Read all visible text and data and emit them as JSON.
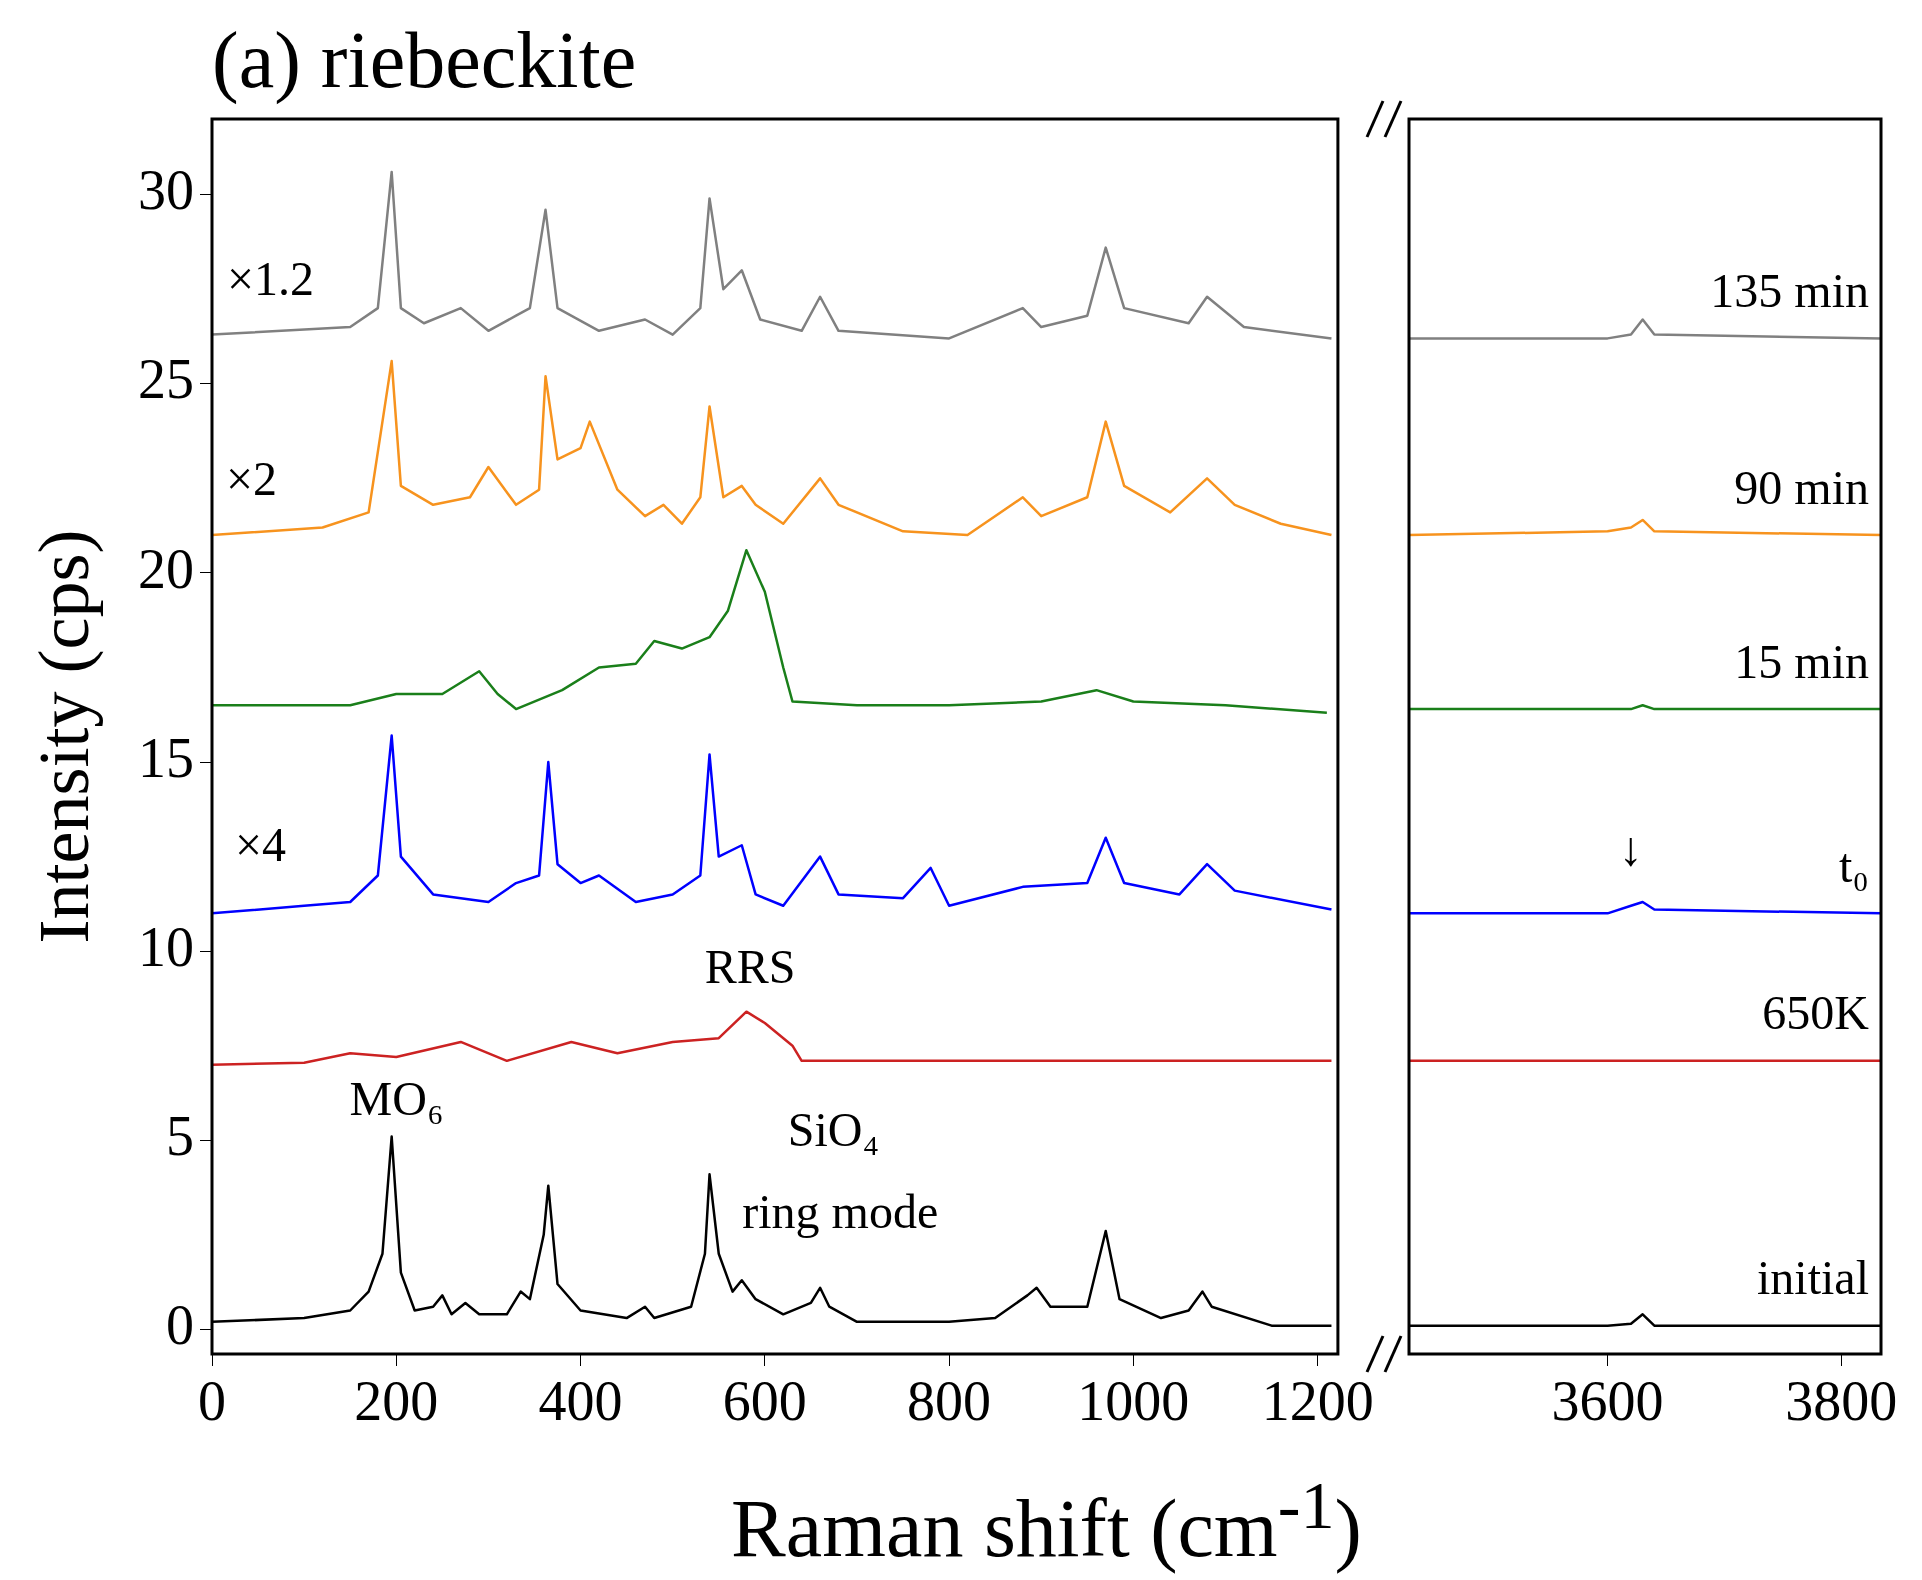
{
  "chart_data": [
    {
      "type": "line",
      "title": "(a) riebeckite",
      "xlabel": "Raman shift (cm$^{-1}$)",
      "ylabel": "Intensity (cps)",
      "xlim": [
        0,
        1222
      ],
      "xticks": [
        0,
        200,
        400,
        600,
        800,
        1000,
        1200
      ],
      "ylim": [
        -0.65,
        32
      ],
      "yticks": [
        0,
        5,
        10,
        15,
        20,
        25,
        30
      ],
      "grid": false,
      "legend": false,
      "annotations": [
        "×1.2",
        "×2",
        "×4",
        "MO₆",
        "RRS",
        "SiO₄",
        "ring mode"
      ],
      "series": [
        {
          "color": "#808080",
          "x": [
            0,
            150,
            180,
            195,
            205,
            230,
            270,
            300,
            330,
            345,
            362,
            375,
            420,
            470,
            500,
            530,
            540,
            555,
            575,
            595,
            640,
            660,
            680,
            800,
            880,
            900,
            950,
            970,
            990,
            1060,
            1080,
            1120,
            1215
          ],
          "values": [
            26.3,
            26.5,
            27.0,
            30.6,
            27.0,
            26.6,
            27.0,
            26.4,
            26.8,
            27.0,
            29.6,
            27.0,
            26.4,
            26.7,
            26.3,
            27.0,
            29.9,
            27.5,
            28.0,
            26.7,
            26.4,
            27.3,
            26.4,
            26.2,
            27.0,
            26.5,
            26.8,
            28.6,
            27.0,
            26.6,
            27.3,
            26.5,
            26.2
          ]
        },
        {
          "color": "#f7931e",
          "x": [
            0,
            120,
            170,
            195,
            205,
            240,
            280,
            300,
            330,
            355,
            362,
            375,
            400,
            410,
            440,
            470,
            490,
            510,
            530,
            540,
            555,
            575,
            590,
            620,
            660,
            680,
            750,
            820,
            880,
            900,
            950,
            970,
            990,
            1040,
            1080,
            1110,
            1160,
            1215
          ],
          "values": [
            21.0,
            21.2,
            21.6,
            25.6,
            22.3,
            21.8,
            22.0,
            22.8,
            21.8,
            22.2,
            25.2,
            23.0,
            23.3,
            24.0,
            22.2,
            21.5,
            21.8,
            21.3,
            22.0,
            24.4,
            22.0,
            22.3,
            21.8,
            21.3,
            22.5,
            21.8,
            21.1,
            21.0,
            22.0,
            21.5,
            22.0,
            24.0,
            22.3,
            21.6,
            22.5,
            21.8,
            21.3,
            21.0
          ]
        },
        {
          "color": "#1a7f1a",
          "x": [
            0,
            150,
            200,
            250,
            290,
            310,
            330,
            380,
            420,
            460,
            480,
            510,
            540,
            560,
            580,
            600,
            620,
            630,
            700,
            800,
            900,
            960,
            1000,
            1100,
            1210
          ],
          "values": [
            16.5,
            16.5,
            16.8,
            16.8,
            17.4,
            16.8,
            16.4,
            16.9,
            17.5,
            17.6,
            18.2,
            18.0,
            18.3,
            19.0,
            20.6,
            19.5,
            17.5,
            16.6,
            16.5,
            16.5,
            16.6,
            16.9,
            16.6,
            16.5,
            16.3
          ]
        },
        {
          "color": "#0000ff",
          "x": [
            0,
            100,
            150,
            180,
            195,
            205,
            240,
            300,
            330,
            355,
            365,
            375,
            400,
            420,
            460,
            500,
            530,
            540,
            550,
            575,
            590,
            620,
            660,
            680,
            750,
            780,
            800,
            880,
            950,
            970,
            990,
            1050,
            1080,
            1110,
            1215
          ],
          "values": [
            11.0,
            11.2,
            11.3,
            12.0,
            15.7,
            12.5,
            11.5,
            11.3,
            11.8,
            12.0,
            15.0,
            12.3,
            11.8,
            12.0,
            11.3,
            11.5,
            12.0,
            15.2,
            12.5,
            12.8,
            11.5,
            11.2,
            12.5,
            11.5,
            11.4,
            12.2,
            11.2,
            11.7,
            11.8,
            13.0,
            11.8,
            11.5,
            12.3,
            11.6,
            11.1
          ]
        },
        {
          "color": "#cc2222",
          "x": [
            0,
            100,
            150,
            200,
            270,
            320,
            390,
            440,
            500,
            550,
            580,
            600,
            630,
            640,
            1215
          ],
          "values": [
            7.0,
            7.05,
            7.3,
            7.2,
            7.6,
            7.1,
            7.6,
            7.3,
            7.6,
            7.7,
            8.4,
            8.1,
            7.5,
            7.1,
            7.1
          ]
        },
        {
          "color": "#000000",
          "x": [
            0,
            100,
            150,
            170,
            185,
            195,
            205,
            220,
            240,
            250,
            260,
            275,
            290,
            320,
            335,
            345,
            360,
            365,
            375,
            400,
            450,
            470,
            480,
            520,
            535,
            540,
            550,
            565,
            575,
            590,
            620,
            650,
            660,
            670,
            700,
            800,
            850,
            885,
            895,
            910,
            950,
            970,
            985,
            1030,
            1060,
            1075,
            1085,
            1150,
            1215
          ],
          "values": [
            0.2,
            0.3,
            0.5,
            1.0,
            2.0,
            5.1,
            1.5,
            0.5,
            0.6,
            0.9,
            0.4,
            0.7,
            0.4,
            0.4,
            1.0,
            0.8,
            2.5,
            3.8,
            1.2,
            0.5,
            0.3,
            0.6,
            0.3,
            0.6,
            2.0,
            4.1,
            2.0,
            1.0,
            1.3,
            0.8,
            0.4,
            0.7,
            1.1,
            0.6,
            0.2,
            0.2,
            0.3,
            0.9,
            1.1,
            0.6,
            0.6,
            2.6,
            0.8,
            0.3,
            0.5,
            1.0,
            0.6,
            0.1,
            0.1
          ]
        }
      ]
    },
    {
      "type": "line",
      "xlim": [
        3430,
        3834
      ],
      "xticks": [
        3600,
        3800
      ],
      "ylim": [
        -0.65,
        32
      ],
      "grid": false,
      "legend": false,
      "tick_labels": "x",
      "annotations": [
        "↓"
      ],
      "series": [
        {
          "name": "135 min",
          "color": "#808080",
          "x": [
            3430,
            3600,
            3620,
            3630,
            3640,
            3834
          ],
          "values": [
            26.2,
            26.2,
            26.3,
            26.7,
            26.3,
            26.2
          ]
        },
        {
          "name": "90 min",
          "color": "#f7931e",
          "x": [
            3430,
            3600,
            3620,
            3630,
            3640,
            3834
          ],
          "values": [
            21.0,
            21.1,
            21.2,
            21.4,
            21.1,
            21.0
          ]
        },
        {
          "name": "15 min",
          "color": "#1a7f1a",
          "x": [
            3430,
            3600,
            3620,
            3630,
            3640,
            3834
          ],
          "values": [
            16.4,
            16.4,
            16.4,
            16.5,
            16.4,
            16.4
          ]
        },
        {
          "name": "t₀",
          "color": "#0000ff",
          "x": [
            3430,
            3600,
            3620,
            3630,
            3640,
            3834
          ],
          "values": [
            11.0,
            11.0,
            11.2,
            11.3,
            11.1,
            11.0
          ]
        },
        {
          "name": "650K",
          "color": "#cc2222",
          "x": [
            3430,
            3600,
            3620,
            3630,
            3640,
            3834
          ],
          "values": [
            7.1,
            7.1,
            7.1,
            7.1,
            7.1,
            7.1
          ]
        },
        {
          "name": "initial",
          "color": "#000000",
          "x": [
            3430,
            3600,
            3620,
            3630,
            3640,
            3834
          ],
          "values": [
            0.1,
            0.1,
            0.15,
            0.4,
            0.1,
            0.1
          ]
        }
      ]
    }
  ]
}
